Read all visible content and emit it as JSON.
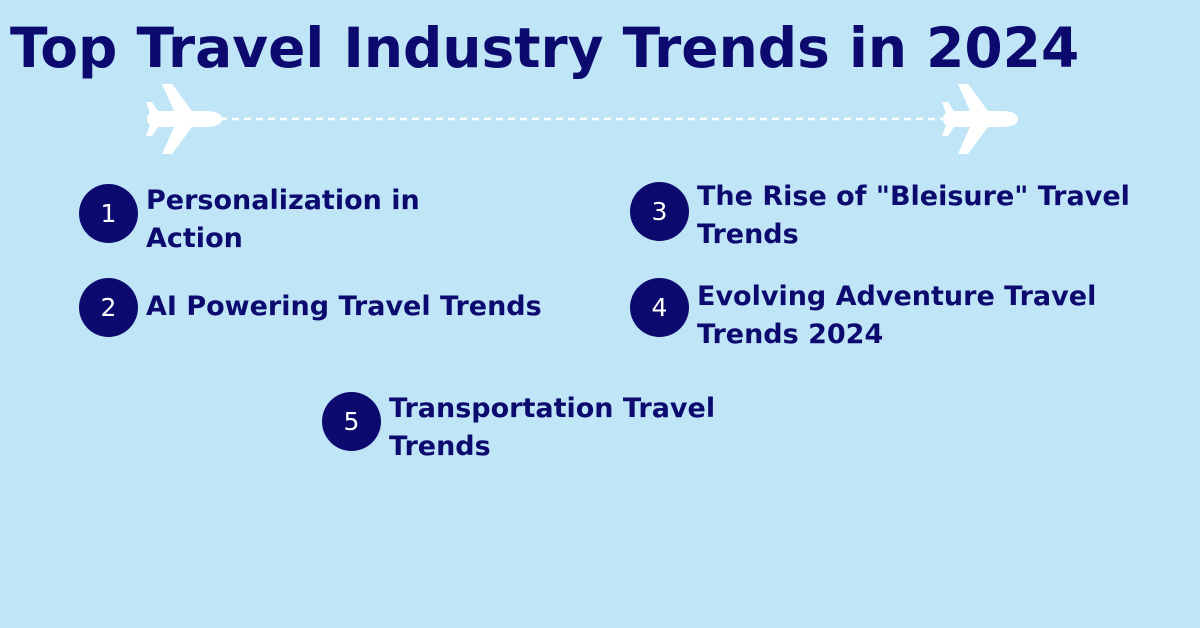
{
  "title": "Top Travel Industry Trends in 2024",
  "decoration": {
    "left_icon": "airplane-icon",
    "right_icon": "airplane-icon",
    "path_color": "#ffffff",
    "plane_color": "#ffffff"
  },
  "colors": {
    "background": "#bfe5f7",
    "accent": "#0c0a6e",
    "badge_text": "#ffffff"
  },
  "items": [
    {
      "number": "1",
      "label": "Personalization in Action"
    },
    {
      "number": "2",
      "label": "AI Powering Travel Trends"
    },
    {
      "number": "3",
      "label": "The Rise of \"Bleisure\" Travel Trends"
    },
    {
      "number": "4",
      "label": "Evolving Adventure Travel Trends 2024"
    },
    {
      "number": "5",
      "label": "Transportation Travel Trends"
    }
  ]
}
